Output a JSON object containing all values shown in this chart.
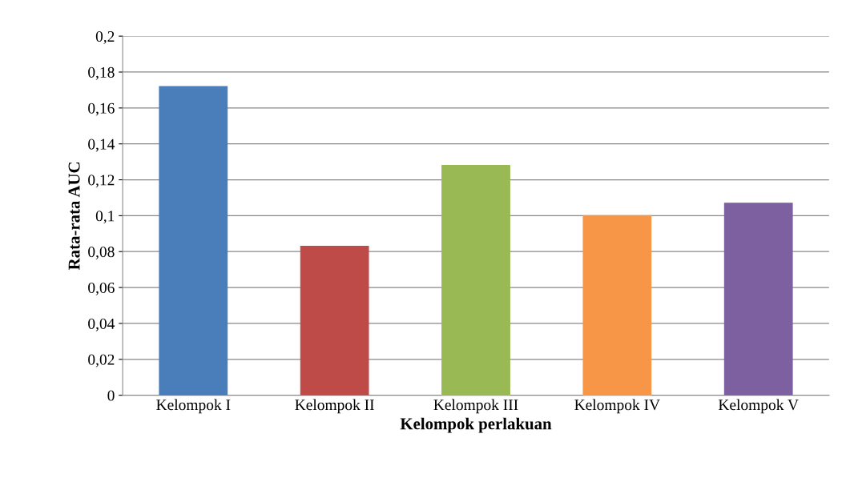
{
  "chart_data": {
    "type": "bar",
    "xlabel": "Kelompok perlakuan",
    "ylabel": "Rata-rata AUC",
    "categories": [
      "Kelompok I",
      "Kelompok II",
      "Kelompok III",
      "Kelompok IV",
      "Kelompok V"
    ],
    "values": [
      0.172,
      0.083,
      0.128,
      0.1,
      0.107
    ],
    "colors": [
      "#4a7ebb",
      "#be4b48",
      "#98b954",
      "#f79646",
      "#7d60a0"
    ],
    "ylim": [
      0,
      0.2
    ],
    "yticks": [
      0,
      {
        "value": 0.02,
        "label": "0,02"
      },
      {
        "value": 0.04,
        "label": "0,04"
      },
      {
        "value": 0.06,
        "label": "0,06"
      },
      {
        "value": 0.08,
        "label": "0,08"
      },
      {
        "value": 0.1,
        "label": "0,1"
      },
      {
        "value": 0.12,
        "label": "0,12"
      },
      {
        "value": 0.14,
        "label": "0,14"
      },
      {
        "value": 0.16,
        "label": "0,16"
      },
      {
        "value": 0.18,
        "label": "0,18"
      },
      {
        "value": 0.2,
        "label": "0,2"
      }
    ],
    "grid": "y",
    "legend": false
  }
}
